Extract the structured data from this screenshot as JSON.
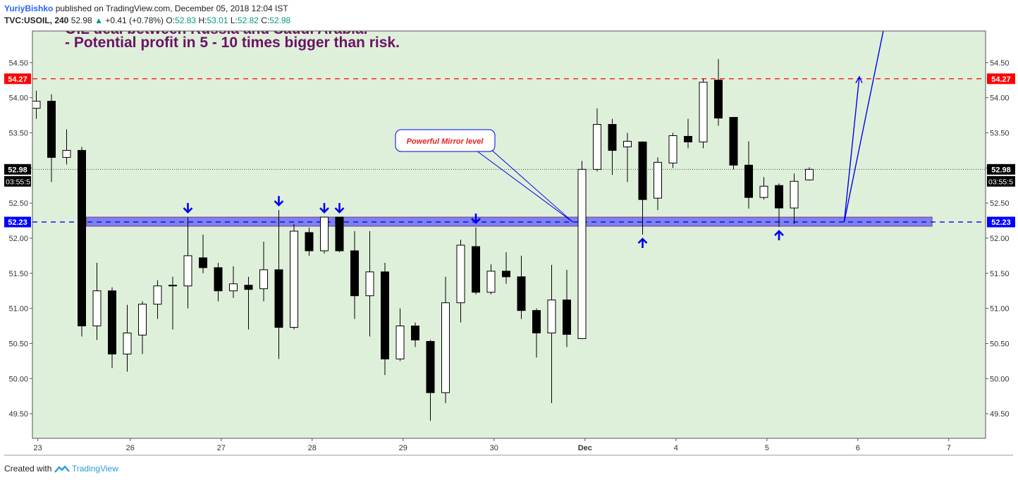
{
  "header": {
    "author": "YuriyBishko",
    "published": "published on TradingView.com, December 05, 2018 12:04 IST",
    "symbol": "TVC:USOIL, 240",
    "last": "52.98",
    "change": "+0.41 (+0.78%)",
    "ohlc": {
      "o_label": "O:",
      "o": "52.83",
      "h_label": "H:",
      "h": "53.01",
      "l_label": "L:",
      "l": "52.82",
      "c_label": "C:",
      "c": "52.98"
    }
  },
  "footer": {
    "created_with": "Created with",
    "brand": "TradingView"
  },
  "colors": {
    "plot_bg": "#dff0da",
    "up_body": "#ffffff",
    "down_body": "#000000",
    "zone_fill": "#6a6ef0",
    "resistance": "#ff0000",
    "support": "#0000ff",
    "note_text": "#6b1266",
    "arrow": "#0000ee"
  },
  "chart_data": {
    "type": "candlestick",
    "y_range": [
      49.15,
      54.95
    ],
    "y_ticks": [
      49.5,
      50.0,
      50.5,
      51.0,
      51.5,
      52.0,
      52.5,
      53.0,
      53.5,
      54.0,
      54.5
    ],
    "y_tick_labels": [
      "49.50",
      "50.00",
      "50.50",
      "51.00",
      "51.50",
      "52.00",
      "52.50",
      "53.00",
      "53.50",
      "54.00",
      "54.50"
    ],
    "x_labels": [
      {
        "label": "23",
        "i": 0.1
      },
      {
        "label": "26",
        "i": 6.2
      },
      {
        "label": "27",
        "i": 12.2
      },
      {
        "label": "28",
        "i": 18.2
      },
      {
        "label": "29",
        "i": 24.2
      },
      {
        "label": "30",
        "i": 30.2
      },
      {
        "label": "Dec",
        "i": 36.2,
        "bold": true
      },
      {
        "label": "4",
        "i": 42.2
      },
      {
        "label": "5",
        "i": 48.2
      },
      {
        "label": "6",
        "i": 54.2
      },
      {
        "label": "7",
        "i": 60.2
      }
    ],
    "candles": [
      {
        "o": 53.85,
        "h": 54.1,
        "l": 53.7,
        "c": 53.95
      },
      {
        "o": 53.95,
        "h": 54.05,
        "l": 52.8,
        "c": 53.15
      },
      {
        "o": 53.15,
        "h": 53.55,
        "l": 53.05,
        "c": 53.25
      },
      {
        "o": 53.25,
        "h": 53.3,
        "l": 50.6,
        "c": 50.75
      },
      {
        "o": 50.75,
        "h": 51.65,
        "l": 50.55,
        "c": 51.25
      },
      {
        "o": 51.25,
        "h": 51.3,
        "l": 50.15,
        "c": 50.35
      },
      {
        "o": 50.35,
        "h": 51.05,
        "l": 50.1,
        "c": 50.65
      },
      {
        "o": 50.62,
        "h": 51.1,
        "l": 50.35,
        "c": 51.06
      },
      {
        "o": 51.06,
        "h": 51.4,
        "l": 50.85,
        "c": 51.32
      },
      {
        "o": 51.33,
        "h": 51.45,
        "l": 50.7,
        "c": 51.32
      },
      {
        "o": 51.32,
        "h": 52.3,
        "l": 51.0,
        "c": 51.75
      },
      {
        "o": 51.72,
        "h": 52.05,
        "l": 51.5,
        "c": 51.58
      },
      {
        "o": 51.58,
        "h": 51.65,
        "l": 51.1,
        "c": 51.25
      },
      {
        "o": 51.25,
        "h": 51.6,
        "l": 51.15,
        "c": 51.35
      },
      {
        "o": 51.33,
        "h": 51.45,
        "l": 50.7,
        "c": 51.27
      },
      {
        "o": 51.28,
        "h": 51.95,
        "l": 51.1,
        "c": 51.55
      },
      {
        "o": 51.55,
        "h": 52.4,
        "l": 50.28,
        "c": 50.73
      },
      {
        "o": 50.73,
        "h": 52.2,
        "l": 50.7,
        "c": 52.1
      },
      {
        "o": 52.08,
        "h": 52.15,
        "l": 51.75,
        "c": 51.82
      },
      {
        "o": 51.82,
        "h": 52.3,
        "l": 51.78,
        "c": 52.3
      },
      {
        "o": 52.3,
        "h": 52.3,
        "l": 51.8,
        "c": 51.82
      },
      {
        "o": 51.82,
        "h": 52.1,
        "l": 50.85,
        "c": 51.18
      },
      {
        "o": 51.18,
        "h": 52.1,
        "l": 50.6,
        "c": 51.52
      },
      {
        "o": 51.52,
        "h": 51.65,
        "l": 50.05,
        "c": 50.28
      },
      {
        "o": 50.28,
        "h": 51.0,
        "l": 50.25,
        "c": 50.75
      },
      {
        "o": 50.75,
        "h": 50.8,
        "l": 50.45,
        "c": 50.55
      },
      {
        "o": 50.53,
        "h": 50.55,
        "l": 49.4,
        "c": 49.8
      },
      {
        "o": 49.8,
        "h": 51.45,
        "l": 49.65,
        "c": 51.08
      },
      {
        "o": 51.08,
        "h": 51.98,
        "l": 50.8,
        "c": 51.9
      },
      {
        "o": 51.88,
        "h": 52.15,
        "l": 51.2,
        "c": 51.23
      },
      {
        "o": 51.23,
        "h": 51.63,
        "l": 51.2,
        "c": 51.53
      },
      {
        "o": 51.53,
        "h": 51.8,
        "l": 51.35,
        "c": 51.45
      },
      {
        "o": 51.45,
        "h": 51.75,
        "l": 50.85,
        "c": 50.97
      },
      {
        "o": 50.97,
        "h": 51.0,
        "l": 50.3,
        "c": 50.65
      },
      {
        "o": 50.65,
        "h": 51.62,
        "l": 49.65,
        "c": 51.12
      },
      {
        "o": 51.12,
        "h": 51.55,
        "l": 50.45,
        "c": 50.63
      },
      {
        "o": 50.57,
        "h": 53.1,
        "l": 50.57,
        "c": 52.98
      },
      {
        "o": 52.98,
        "h": 53.85,
        "l": 52.95,
        "c": 53.62
      },
      {
        "o": 53.62,
        "h": 53.7,
        "l": 52.9,
        "c": 53.25
      },
      {
        "o": 53.3,
        "h": 53.5,
        "l": 52.8,
        "c": 53.38
      },
      {
        "o": 53.37,
        "h": 53.38,
        "l": 52.05,
        "c": 52.55
      },
      {
        "o": 52.57,
        "h": 53.15,
        "l": 52.4,
        "c": 53.08
      },
      {
        "o": 53.07,
        "h": 53.5,
        "l": 53.0,
        "c": 53.46
      },
      {
        "o": 53.45,
        "h": 53.7,
        "l": 53.28,
        "c": 53.37
      },
      {
        "o": 53.37,
        "h": 54.27,
        "l": 53.28,
        "c": 54.22
      },
      {
        "o": 54.25,
        "h": 54.55,
        "l": 53.6,
        "c": 53.71
      },
      {
        "o": 53.72,
        "h": 53.72,
        "l": 52.98,
        "c": 53.04
      },
      {
        "o": 53.04,
        "h": 53.38,
        "l": 52.42,
        "c": 52.58
      },
      {
        "o": 52.58,
        "h": 52.87,
        "l": 52.55,
        "c": 52.74
      },
      {
        "o": 52.75,
        "h": 52.78,
        "l": 52.16,
        "c": 52.43
      },
      {
        "o": 52.43,
        "h": 52.92,
        "l": 52.2,
        "c": 52.81
      },
      {
        "o": 52.83,
        "h": 53.01,
        "l": 52.82,
        "c": 52.98
      }
    ],
    "zone": {
      "low": 52.17,
      "high": 52.3,
      "i_start": 3.3,
      "i_end": 59.1
    },
    "resistance": {
      "value": 54.27,
      "label": "54.27"
    },
    "support": {
      "value": 52.23,
      "label": "52.23"
    },
    "last_price": {
      "value": 52.98,
      "label": "52.98",
      "timer": "03:55:5"
    },
    "annotation": {
      "text": "Powerful Mirror level",
      "anchor_i": 35.4,
      "anchor_value": 52.23
    },
    "notes": [
      "OIL deal between Russia and Saudi Arabia.",
      "- Potential profit in 5 - 10 times bigger than risk."
    ],
    "down_arrows": [
      10,
      16,
      19,
      20,
      29
    ],
    "up_arrows": [
      40,
      49
    ],
    "projection": {
      "start": {
        "i": 53.3,
        "v": 52.23
      },
      "to_target": {
        "i": 54.3,
        "v": 54.3
      },
      "beyond": {
        "i": 56.4,
        "v": 55.5
      }
    }
  }
}
